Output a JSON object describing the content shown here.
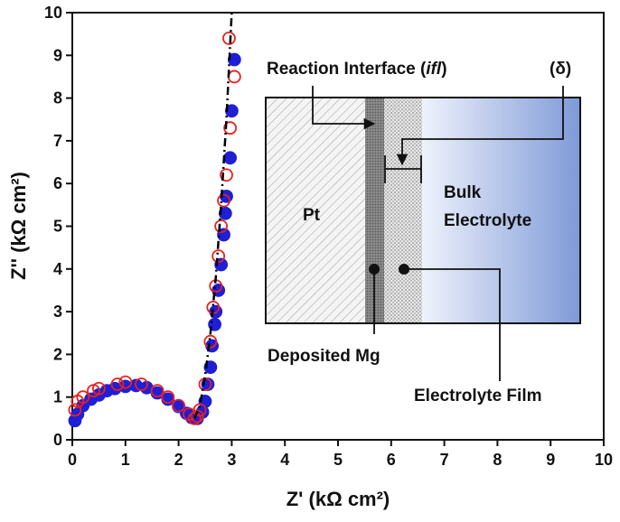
{
  "chart_data": {
    "type": "scatter",
    "x_label": "Z' (kΩ cm²)",
    "y_label": "Z'' (kΩ cm²)",
    "xlim": [
      0,
      10
    ],
    "ylim": [
      0,
      10
    ],
    "xticks": [
      0,
      1,
      2,
      3,
      4,
      5,
      6,
      7,
      8,
      9,
      10
    ],
    "yticks": [
      0,
      1,
      2,
      3,
      4,
      5,
      6,
      7,
      8,
      9,
      10
    ],
    "series": [
      {
        "color": "#1f1fd6",
        "marker": "filled",
        "x": [
          0.05,
          0.1,
          0.2,
          0.35,
          0.5,
          0.65,
          0.8,
          1.0,
          1.2,
          1.4,
          1.6,
          1.8,
          2.0,
          2.15,
          2.25,
          2.35,
          2.45,
          2.5,
          2.55,
          2.6,
          2.63,
          2.68,
          2.7,
          2.75,
          2.8,
          2.85,
          2.88,
          2.9,
          2.97,
          3.0,
          3.05
        ],
        "values": [
          0.45,
          0.6,
          0.8,
          0.95,
          1.05,
          1.15,
          1.2,
          1.25,
          1.27,
          1.22,
          1.1,
          0.95,
          0.78,
          0.62,
          0.52,
          0.5,
          0.65,
          0.9,
          1.3,
          1.7,
          2.2,
          2.7,
          3.0,
          3.5,
          4.1,
          4.8,
          5.3,
          5.7,
          6.6,
          7.7,
          8.9
        ]
      },
      {
        "color": "#e8201f",
        "marker": "open",
        "x": [
          0.05,
          0.1,
          0.2,
          0.4,
          0.5,
          0.85,
          1.0,
          1.3,
          1.6,
          1.8,
          2.0,
          2.2,
          2.3,
          2.35,
          2.4,
          2.5,
          2.6,
          2.65,
          2.7,
          2.75,
          2.8,
          2.85,
          2.9,
          2.97,
          3.05,
          2.95
        ],
        "values": [
          0.7,
          0.9,
          1.0,
          1.15,
          1.2,
          1.3,
          1.35,
          1.3,
          1.15,
          1.0,
          0.8,
          0.6,
          0.5,
          0.55,
          0.7,
          1.3,
          2.3,
          3.1,
          3.6,
          4.3,
          5.0,
          5.6,
          6.2,
          7.3,
          8.5,
          9.4
        ]
      },
      {
        "color": "#000000",
        "marker": "none",
        "line": "dash-dot",
        "x": [
          2.3,
          2.4,
          2.5,
          2.6,
          2.7,
          2.8,
          2.9,
          3.0
        ],
        "values": [
          0.5,
          0.8,
          1.5,
          2.5,
          3.8,
          5.5,
          7.5,
          10
        ]
      }
    ],
    "annotations": {
      "reaction_interface": [
        "Reaction Interface (",
        "ifl",
        ")"
      ],
      "delta": "(δ)",
      "pt": "Pt",
      "bulk": [
        "Bulk",
        "Electrolyte"
      ],
      "deposited": "Deposited Mg",
      "film": "Electrolyte Film"
    }
  }
}
